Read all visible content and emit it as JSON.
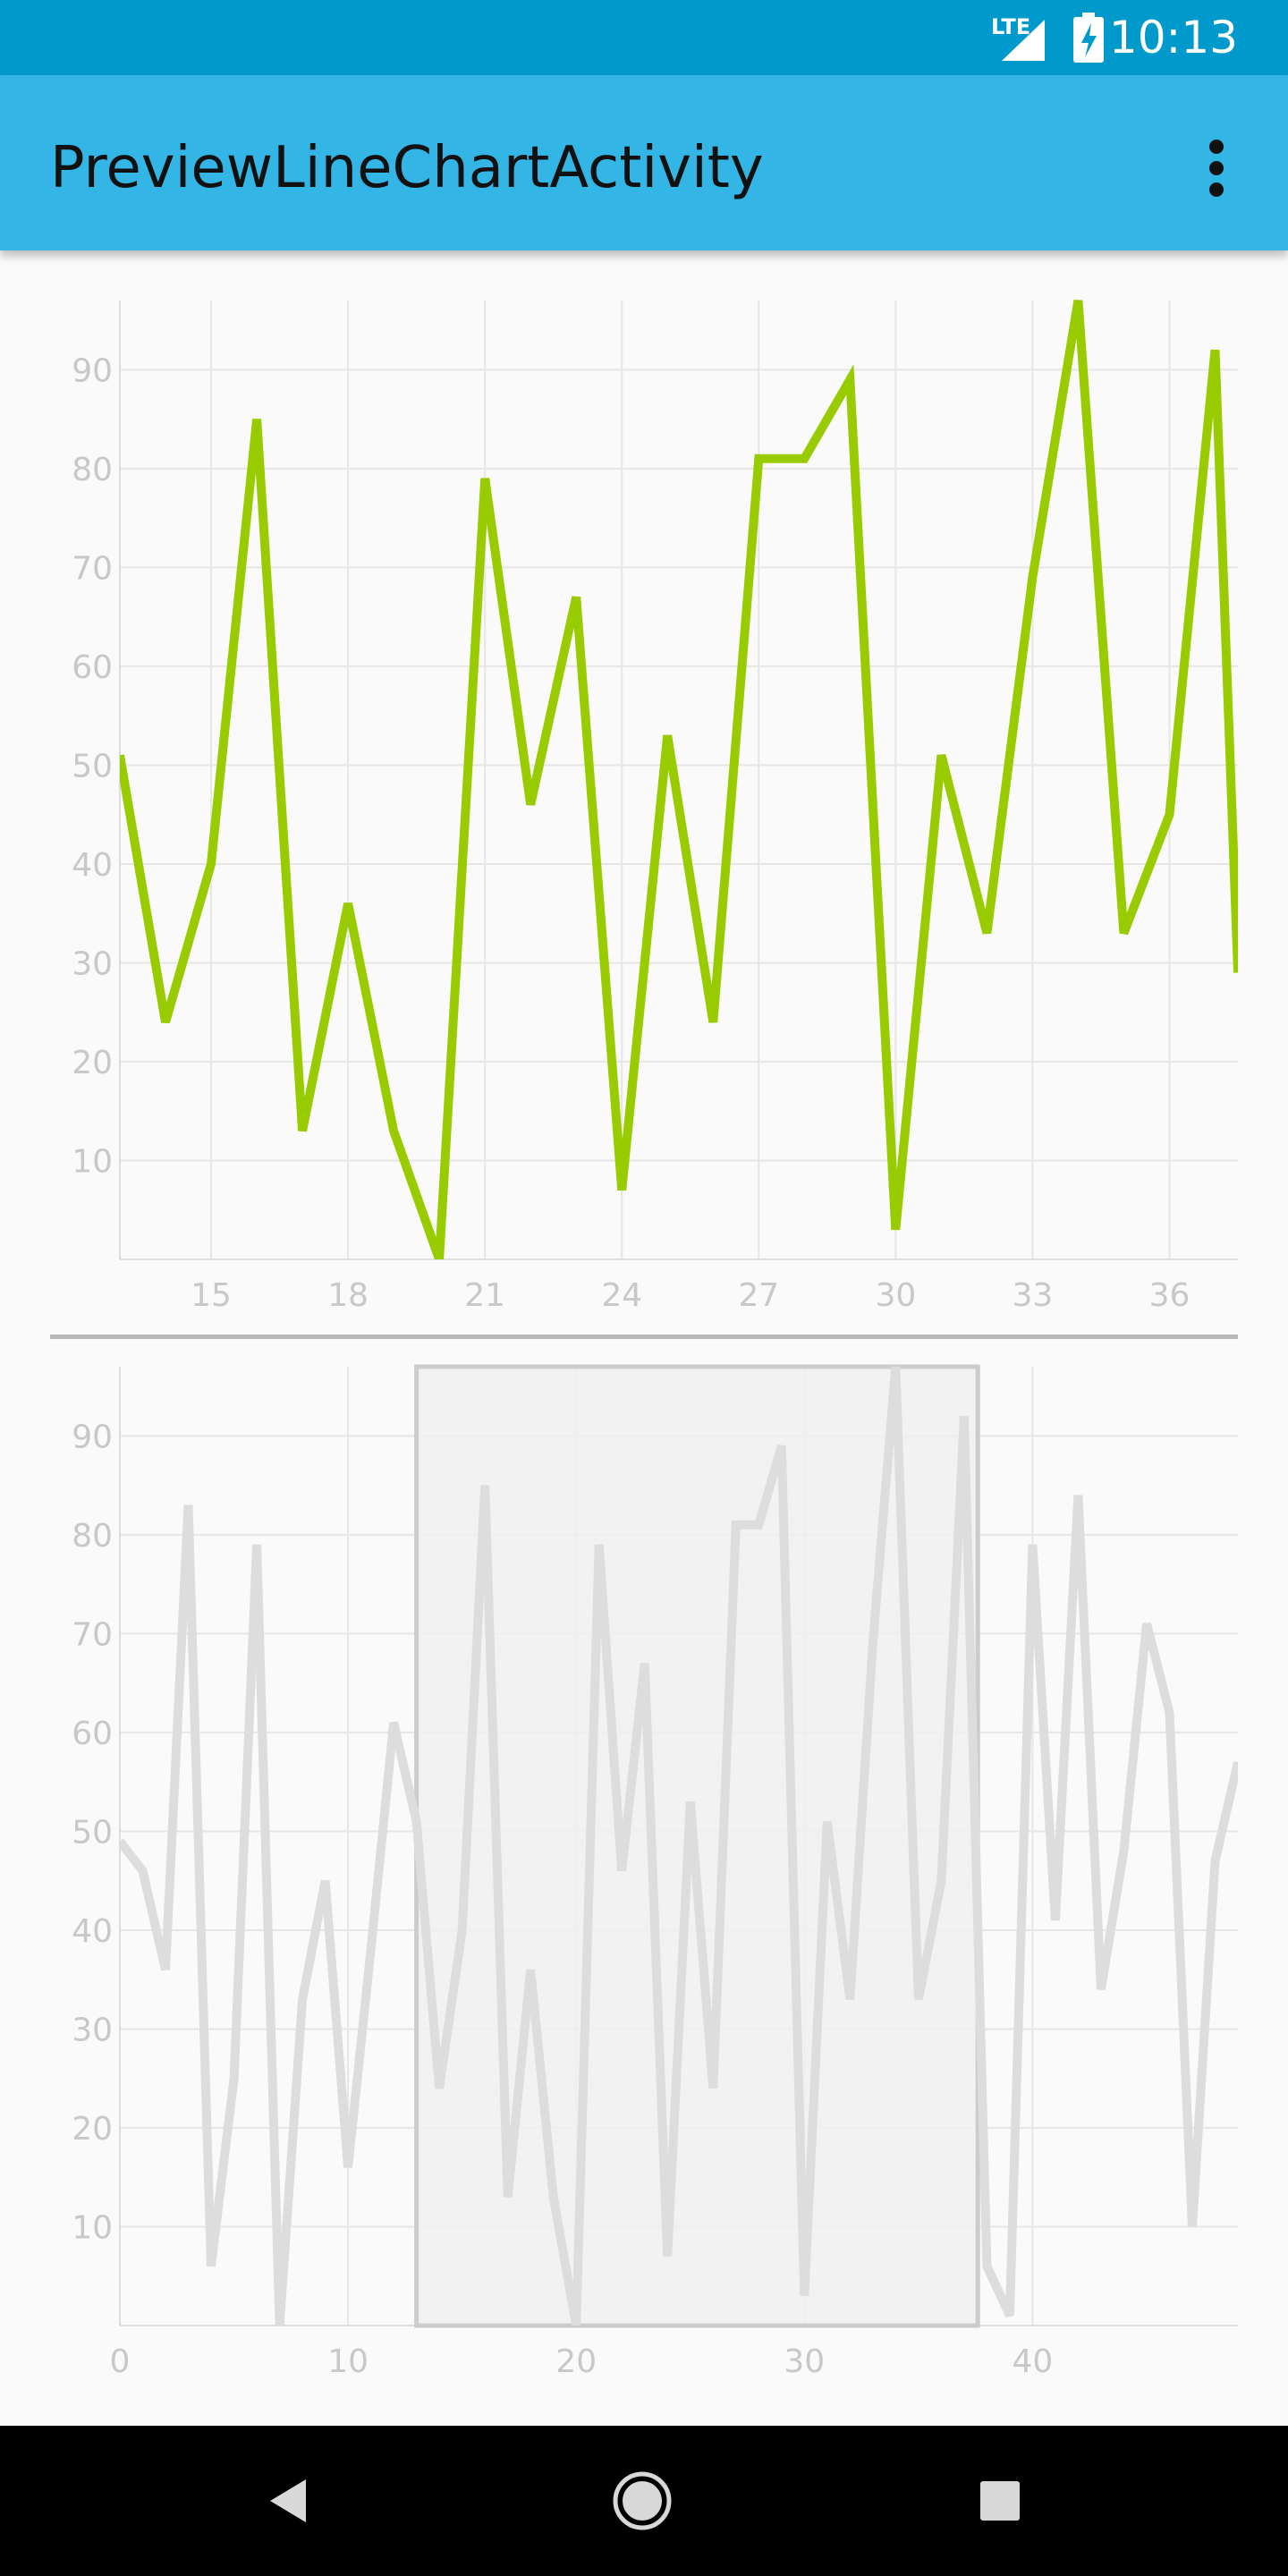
{
  "status_bar": {
    "network": "LTE",
    "time": "10:13"
  },
  "app_bar": {
    "title": "PreviewLineChartActivity",
    "menu_icon": "more-vert-icon"
  },
  "colors": {
    "status_bar": "#0099CC",
    "app_bar": "#33B5E5",
    "line_primary": "#99CC00",
    "line_preview": "#DDDDDD",
    "viewport_fill": "#F0F0F0",
    "viewport_stroke": "#CCCCCC",
    "axis_text": "#C8C8C8",
    "grid": "#E6E6E6"
  },
  "chart_data": [
    {
      "type": "line",
      "role": "zoomed-main-chart",
      "x_axis": {
        "ticks": [
          15,
          18,
          21,
          24,
          27,
          30,
          33,
          36
        ],
        "range": [
          13,
          37.5
        ]
      },
      "y_axis": {
        "ticks": [
          10,
          20,
          30,
          40,
          50,
          60,
          70,
          80,
          90
        ],
        "range": [
          0,
          97
        ]
      },
      "grid": true,
      "series": [
        {
          "color": "#99CC00",
          "x": [
            13,
            14,
            15,
            16,
            17,
            18,
            19,
            20,
            21,
            22,
            23,
            24,
            25,
            26,
            27,
            28,
            29,
            30,
            31,
            32,
            33,
            34,
            35,
            36,
            37,
            37.5
          ],
          "y": [
            51,
            24,
            40,
            85,
            13,
            36,
            13,
            0,
            79,
            46,
            67,
            7,
            53,
            24,
            81,
            81,
            89,
            3,
            51,
            33,
            69,
            97,
            33,
            45,
            92,
            29
          ]
        }
      ]
    },
    {
      "type": "line",
      "role": "preview-chart",
      "x_axis": {
        "ticks": [
          0,
          10,
          20,
          30,
          40
        ],
        "range": [
          0,
          49
        ]
      },
      "y_axis": {
        "ticks": [
          10,
          20,
          30,
          40,
          50,
          60,
          70,
          80,
          90
        ],
        "range": [
          0,
          97
        ]
      },
      "grid": true,
      "viewport": {
        "x_range": [
          13,
          37.6
        ],
        "y_range": [
          0,
          97
        ]
      },
      "series": [
        {
          "color": "#DDDDDD",
          "x": [
            0,
            1,
            2,
            3,
            4,
            5,
            6,
            7,
            8,
            9,
            10,
            11,
            12,
            13,
            14,
            15,
            16,
            17,
            18,
            19,
            20,
            21,
            22,
            23,
            24,
            25,
            26,
            27,
            28,
            29,
            30,
            31,
            32,
            33,
            34,
            35,
            36,
            37,
            38,
            39,
            40,
            41,
            42,
            43,
            44,
            45,
            46,
            47,
            48,
            49
          ],
          "y": [
            49,
            46,
            36,
            83,
            6,
            25,
            79,
            0,
            33,
            45,
            16,
            38,
            61,
            51,
            24,
            40,
            85,
            13,
            36,
            13,
            0,
            79,
            46,
            67,
            7,
            53,
            24,
            81,
            81,
            89,
            3,
            51,
            33,
            69,
            97,
            33,
            45,
            92,
            6,
            1,
            79,
            41,
            84,
            34,
            48,
            71,
            62,
            10,
            47,
            57
          ]
        }
      ]
    }
  ]
}
